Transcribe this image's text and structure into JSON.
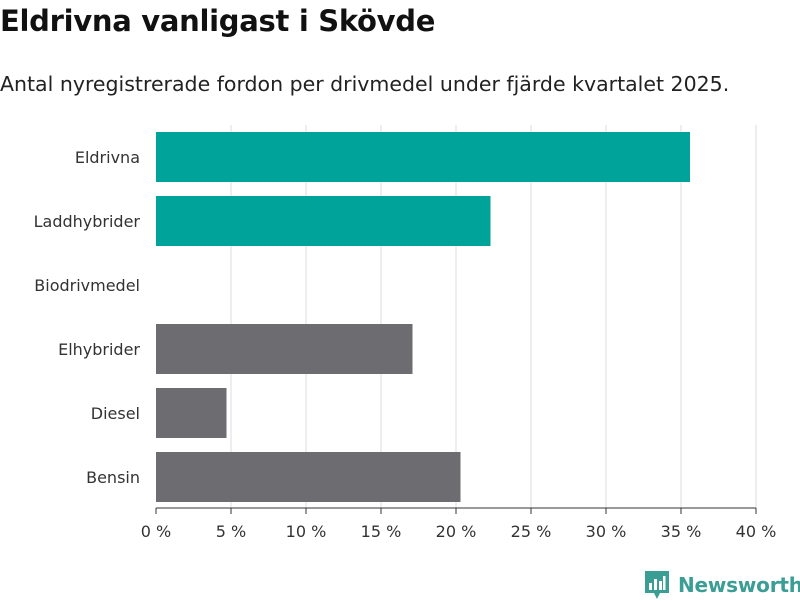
{
  "title": "Eldrivna vanligast i Skövde",
  "subtitle": "Antal nyregistrerade fordon per drivmedel under fjärde kvartalet 2025.",
  "brand": {
    "name": "Newsworthy",
    "icon": "bar-chart-logo-icon"
  },
  "colors": {
    "highlight": "#00a39a",
    "other": "#6d6c71",
    "grid": "#dddddd",
    "axis": "#333333",
    "brand": "#3a9e95"
  },
  "chart_data": {
    "type": "bar",
    "orientation": "horizontal",
    "categories": [
      "Eldrivna",
      "Laddhybrider",
      "Biodrivmedel",
      "Elhybrider",
      "Diesel",
      "Bensin"
    ],
    "values": [
      35.6,
      22.3,
      0,
      17.1,
      4.7,
      20.3
    ],
    "highlighted": [
      true,
      true,
      true,
      false,
      false,
      false
    ],
    "xlim": [
      0,
      40
    ],
    "xticks": [
      0,
      5,
      10,
      15,
      20,
      25,
      30,
      35,
      40
    ],
    "xtick_labels": [
      "0 %",
      "5 %",
      "10 %",
      "15 %",
      "20 %",
      "25 %",
      "30 %",
      "35 %",
      "40 %"
    ],
    "xlabel": "",
    "ylabel": "",
    "grid": true
  }
}
